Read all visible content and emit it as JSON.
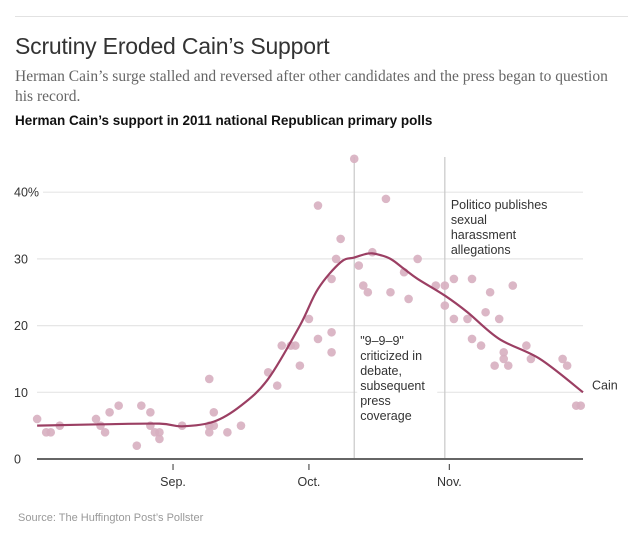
{
  "header": {
    "title": "Scrutiny Eroded Cain’s Support",
    "subtitle": "Herman Cain’s surge stalled and reversed after other candidates and the press began to question his record.",
    "chart_title": "Herman Cain’s support in 2011 national Republican primary polls"
  },
  "footer": {
    "source": "Source: The Huffington Post’s Pollster"
  },
  "colors": {
    "trend_line": "#9b3f63",
    "poll_dot": "#d7afc0",
    "gridline": "#e6e6e6",
    "axis": "#666666",
    "event_line": "#c8c8c8"
  },
  "chart_data": {
    "type": "scatter",
    "title": "Herman Cain’s support in 2011 national Republican primary polls",
    "xlabel": "",
    "ylabel": "",
    "xlim": [
      "2011-08-01",
      "2011-11-30"
    ],
    "ylim": [
      0,
      45
    ],
    "grid": true,
    "y_ticks": [
      {
        "value": 0,
        "label": "0"
      },
      {
        "value": 10,
        "label": "10"
      },
      {
        "value": 20,
        "label": "20"
      },
      {
        "value": 30,
        "label": "30"
      },
      {
        "value": 40,
        "label": "40%"
      }
    ],
    "x_ticks": [
      {
        "date": "2011-09-01",
        "label": "Sep."
      },
      {
        "date": "2011-10-01",
        "label": "Oct."
      },
      {
        "date": "2011-11-01",
        "label": "Nov."
      }
    ],
    "series": [
      {
        "name": "Polls",
        "kind": "scatter",
        "points": [
          {
            "date": "2011-08-02",
            "value": 6
          },
          {
            "date": "2011-08-04",
            "value": 4
          },
          {
            "date": "2011-08-05",
            "value": 4
          },
          {
            "date": "2011-08-07",
            "value": 5
          },
          {
            "date": "2011-08-15",
            "value": 6
          },
          {
            "date": "2011-08-16",
            "value": 5
          },
          {
            "date": "2011-08-17",
            "value": 4
          },
          {
            "date": "2011-08-18",
            "value": 7
          },
          {
            "date": "2011-08-20",
            "value": 8
          },
          {
            "date": "2011-08-24",
            "value": 2
          },
          {
            "date": "2011-08-25",
            "value": 8
          },
          {
            "date": "2011-08-27",
            "value": 7
          },
          {
            "date": "2011-08-27",
            "value": 5
          },
          {
            "date": "2011-08-28",
            "value": 4
          },
          {
            "date": "2011-08-29",
            "value": 4
          },
          {
            "date": "2011-08-29",
            "value": 3
          },
          {
            "date": "2011-09-03",
            "value": 5
          },
          {
            "date": "2011-09-09",
            "value": 12
          },
          {
            "date": "2011-09-09",
            "value": 5
          },
          {
            "date": "2011-09-09",
            "value": 4
          },
          {
            "date": "2011-09-10",
            "value": 7
          },
          {
            "date": "2011-09-10",
            "value": 5
          },
          {
            "date": "2011-09-13",
            "value": 4
          },
          {
            "date": "2011-09-16",
            "value": 5
          },
          {
            "date": "2011-09-22",
            "value": 13
          },
          {
            "date": "2011-09-24",
            "value": 11
          },
          {
            "date": "2011-09-25",
            "value": 17
          },
          {
            "date": "2011-09-27",
            "value": 17
          },
          {
            "date": "2011-09-28",
            "value": 17
          },
          {
            "date": "2011-09-29",
            "value": 14
          },
          {
            "date": "2011-10-01",
            "value": 21
          },
          {
            "date": "2011-10-03",
            "value": 38
          },
          {
            "date": "2011-10-03",
            "value": 18
          },
          {
            "date": "2011-10-06",
            "value": 27
          },
          {
            "date": "2011-10-06",
            "value": 19
          },
          {
            "date": "2011-10-06",
            "value": 16
          },
          {
            "date": "2011-10-07",
            "value": 30
          },
          {
            "date": "2011-10-08",
            "value": 33
          },
          {
            "date": "2011-10-11",
            "value": 45
          },
          {
            "date": "2011-10-12",
            "value": 29
          },
          {
            "date": "2011-10-13",
            "value": 26
          },
          {
            "date": "2011-10-14",
            "value": 25
          },
          {
            "date": "2011-10-15",
            "value": 31
          },
          {
            "date": "2011-10-18",
            "value": 39
          },
          {
            "date": "2011-10-19",
            "value": 25
          },
          {
            "date": "2011-10-22",
            "value": 28
          },
          {
            "date": "2011-10-23",
            "value": 24
          },
          {
            "date": "2011-10-25",
            "value": 30
          },
          {
            "date": "2011-10-29",
            "value": 26
          },
          {
            "date": "2011-10-31",
            "value": 26
          },
          {
            "date": "2011-10-31",
            "value": 23
          },
          {
            "date": "2011-11-02",
            "value": 27
          },
          {
            "date": "2011-11-02",
            "value": 21
          },
          {
            "date": "2011-11-05",
            "value": 21
          },
          {
            "date": "2011-11-06",
            "value": 27
          },
          {
            "date": "2011-11-06",
            "value": 18
          },
          {
            "date": "2011-11-08",
            "value": 17
          },
          {
            "date": "2011-11-09",
            "value": 22
          },
          {
            "date": "2011-11-10",
            "value": 25
          },
          {
            "date": "2011-11-11",
            "value": 14
          },
          {
            "date": "2011-11-12",
            "value": 21
          },
          {
            "date": "2011-11-13",
            "value": 16
          },
          {
            "date": "2011-11-13",
            "value": 15
          },
          {
            "date": "2011-11-14",
            "value": 14
          },
          {
            "date": "2011-11-15",
            "value": 26
          },
          {
            "date": "2011-11-18",
            "value": 17
          },
          {
            "date": "2011-11-19",
            "value": 15
          },
          {
            "date": "2011-11-26",
            "value": 15
          },
          {
            "date": "2011-11-27",
            "value": 14
          },
          {
            "date": "2011-11-29",
            "value": 8
          },
          {
            "date": "2011-11-30",
            "value": 8
          }
        ]
      },
      {
        "name": "Cain",
        "kind": "line",
        "label": "Cain",
        "points": [
          {
            "date": "2011-08-02",
            "value": 5
          },
          {
            "date": "2011-08-16",
            "value": 5.2
          },
          {
            "date": "2011-08-29",
            "value": 5.3
          },
          {
            "date": "2011-09-03",
            "value": 4.9
          },
          {
            "date": "2011-09-10",
            "value": 5.6
          },
          {
            "date": "2011-09-16",
            "value": 8
          },
          {
            "date": "2011-09-22",
            "value": 12
          },
          {
            "date": "2011-09-29",
            "value": 20
          },
          {
            "date": "2011-10-03",
            "value": 25.5
          },
          {
            "date": "2011-10-08",
            "value": 29.5
          },
          {
            "date": "2011-10-11",
            "value": 30.2
          },
          {
            "date": "2011-10-14",
            "value": 30.8
          },
          {
            "date": "2011-10-16",
            "value": 30.7
          },
          {
            "date": "2011-10-19",
            "value": 30
          },
          {
            "date": "2011-10-22",
            "value": 28.5
          },
          {
            "date": "2011-10-25",
            "value": 27
          },
          {
            "date": "2011-10-31",
            "value": 24.5
          },
          {
            "date": "2011-11-05",
            "value": 22
          },
          {
            "date": "2011-11-12",
            "value": 18
          },
          {
            "date": "2011-11-21",
            "value": 15
          },
          {
            "date": "2011-12-01",
            "value": 10
          }
        ]
      }
    ],
    "annotations": [
      {
        "date": "2011-10-11",
        "lines": [
          "\"9–9–9\"",
          "criticized in",
          "debate,",
          "subsequent",
          "press",
          "coverage"
        ]
      },
      {
        "date": "2011-10-31",
        "lines": [
          "Politico publishes",
          "sexual",
          "harassment",
          "allegations"
        ]
      }
    ]
  }
}
